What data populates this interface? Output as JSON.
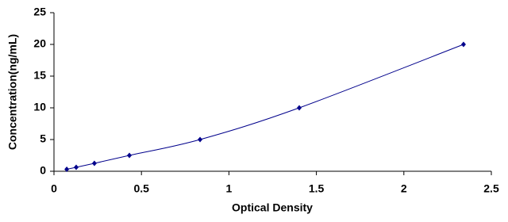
{
  "chart_data": {
    "type": "line",
    "x_label": "Optical Density",
    "y_label": "Concentration(ng/mL)",
    "x": [
      0.073,
      0.127,
      0.231,
      0.431,
      0.835,
      1.402,
      2.341
    ],
    "series": [
      {
        "color": "#00008b",
        "values": [
          0.3125,
          0.625,
          1.25,
          2.5,
          5,
          10,
          20
        ]
      }
    ],
    "xlim": [
      0,
      2.5
    ],
    "xticks": [
      0,
      0.5,
      1,
      1.5,
      2,
      2.5
    ],
    "ylim": [
      0,
      25
    ],
    "yticks": [
      0,
      5,
      10,
      15,
      20,
      25
    ],
    "grid": false
  }
}
